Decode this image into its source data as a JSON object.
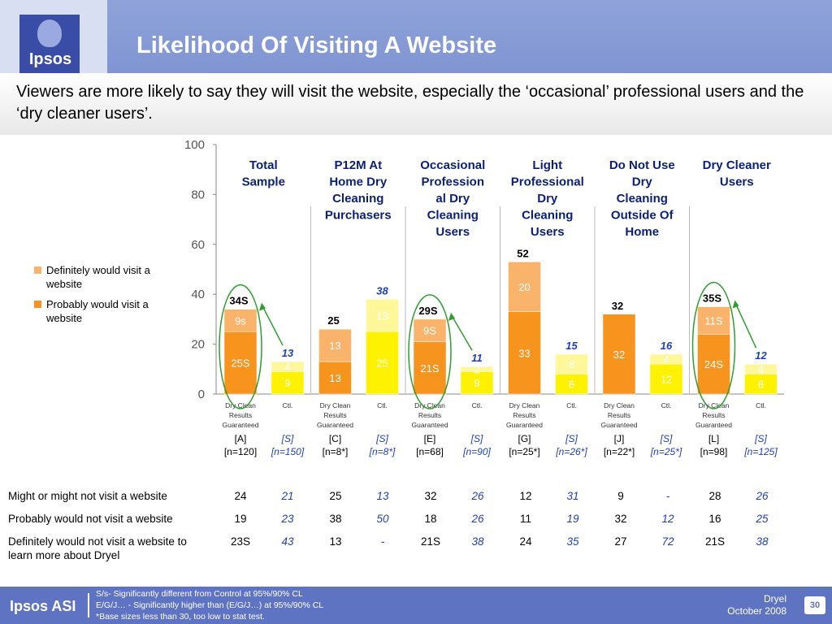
{
  "header": {
    "title": "Likelihood Of Visiting A Website",
    "logo": "Ipsos"
  },
  "subtitle": "Viewers are more likely to say they will visit the website, especially the ‘occasional’ professional users and the ‘dry cleaner users’.",
  "legend": {
    "definitely": "Definitely would visit a website",
    "probably": "Probably would visit a website"
  },
  "colors": {
    "test_probably": "#f7941d",
    "test_definitely": "#f9b36a",
    "ctl_probably": "#fff200",
    "ctl_definitely": "#fff799",
    "arrow": "#2e9e2e",
    "ctl_text": "#1f3fbf"
  },
  "chart_data": {
    "type": "bar",
    "stacked": true,
    "ylim": [
      0,
      100
    ],
    "yticks": [
      0,
      20,
      40,
      60,
      80,
      100
    ],
    "groups": [
      {
        "name": "Total Sample",
        "bars": [
          {
            "cat": "Dry Clean Results Guaranteed",
            "probably": 25,
            "definitely": 9,
            "probably_label": "25S",
            "definitely_label": "9s",
            "total_label": "34S",
            "ctl": false,
            "letter": "[A]",
            "n": "[n=120]"
          },
          {
            "cat": "Ctl.",
            "probably": 9,
            "definitely": 4,
            "probably_label": "9",
            "definitely_label": "4",
            "total_label": "13",
            "ctl": true,
            "letter": "[S]",
            "n": "[n=150]"
          }
        ]
      },
      {
        "name": "P12M At Home Dry Cleaning Purchasers",
        "bars": [
          {
            "cat": "Dry Clean Results Guaranteed",
            "probably": 13,
            "definitely": 13,
            "probably_label": "13",
            "definitely_label": "13",
            "total_label": "25",
            "ctl": false,
            "letter": "[C]",
            "n": "[n=8*]"
          },
          {
            "cat": "Ctl.",
            "probably": 25,
            "definitely": 13,
            "probably_label": "25",
            "definitely_label": "13",
            "total_label": "38",
            "ctl": true,
            "letter": "[S]",
            "n": "[n=8*]"
          }
        ]
      },
      {
        "name": "Occasional Profession al Dry Cleaning Users",
        "bars": [
          {
            "cat": "Dry Clean Results Guaranteed",
            "probably": 21,
            "definitely": 9,
            "probably_label": "21S",
            "definitely_label": "9S",
            "total_label": "29S",
            "ctl": false,
            "letter": "[E]",
            "n": "[n=68]"
          },
          {
            "cat": "Ctl.",
            "probably": 9,
            "definitely": 2,
            "probably_label": "9",
            "definitely_label": "2",
            "total_label": "11",
            "ctl": true,
            "letter": "[S]",
            "n": "[n=90]"
          }
        ]
      },
      {
        "name": "Light Professional Dry Cleaning Users",
        "bars": [
          {
            "cat": "Dry Clean Results Guaranteed",
            "probably": 33,
            "definitely": 20,
            "probably_label": "33",
            "definitely_label": "20",
            "total_label": "52",
            "ctl": false,
            "letter": "[G]",
            "n": "[n=25*]"
          },
          {
            "cat": "Ctl.",
            "probably": 8,
            "definitely": 8,
            "probably_label": "8",
            "definitely_label": "8",
            "total_label": "15",
            "ctl": true,
            "letter": "[S]",
            "n": "[n=26*]"
          }
        ]
      },
      {
        "name": "Do Not Use Dry Cleaning Outside Of Home",
        "bars": [
          {
            "cat": "Dry Clean Results Guaranteed",
            "probably": 32,
            "definitely": 0,
            "probably_label": "32",
            "definitely_label": "",
            "total_label": "32",
            "ctl": false,
            "letter": "[J]",
            "n": "[n=22*]"
          },
          {
            "cat": "Ctl.",
            "probably": 12,
            "definitely": 4,
            "probably_label": "12",
            "definitely_label": "4",
            "total_label": "16",
            "ctl": true,
            "letter": "[S]",
            "n": "[n=25*]"
          }
        ]
      },
      {
        "name": "Dry Cleaner Users",
        "bars": [
          {
            "cat": "Dry Clean Results Guaranteed",
            "probably": 24,
            "definitely": 11,
            "probably_label": "24S",
            "definitely_label": "11S",
            "total_label": "35S",
            "ctl": false,
            "letter": "[L]",
            "n": "[n=98]"
          },
          {
            "cat": "Ctl.",
            "probably": 8,
            "definitely": 4,
            "probably_label": "8",
            "definitely_label": "4",
            "total_label": "12",
            "ctl": true,
            "letter": "[S]",
            "n": "[n=125]"
          }
        ]
      }
    ]
  },
  "stats_table": {
    "rows": [
      {
        "label": "Might or might not visit a website",
        "values": [
          "24",
          "21",
          "25",
          "13",
          "32",
          "26",
          "12",
          "31",
          "9",
          "-",
          "28",
          "26"
        ]
      },
      {
        "label": "Probably would not visit a website",
        "values": [
          "19",
          "23",
          "38",
          "50",
          "18",
          "26",
          "11",
          "19",
          "32",
          "12",
          "16",
          "25"
        ]
      },
      {
        "label": "Definitely would not visit a website to learn more about Dryel",
        "values": [
          "23S",
          "43",
          "13",
          "-",
          "21S",
          "38",
          "24",
          "35",
          "27",
          "72",
          "21S",
          "38"
        ]
      }
    ]
  },
  "footer": {
    "logo": "Ipsos ASI",
    "notes": [
      "S/s- Significantly different from Control  at 95%/90% CL",
      "E/G/J… - Significantly higher than (E/G/J…) at 95%/90% CL",
      "*Base sizes less than 30, too low to stat test."
    ],
    "brand": "Dryel",
    "date": "October 2008",
    "page": "30"
  }
}
